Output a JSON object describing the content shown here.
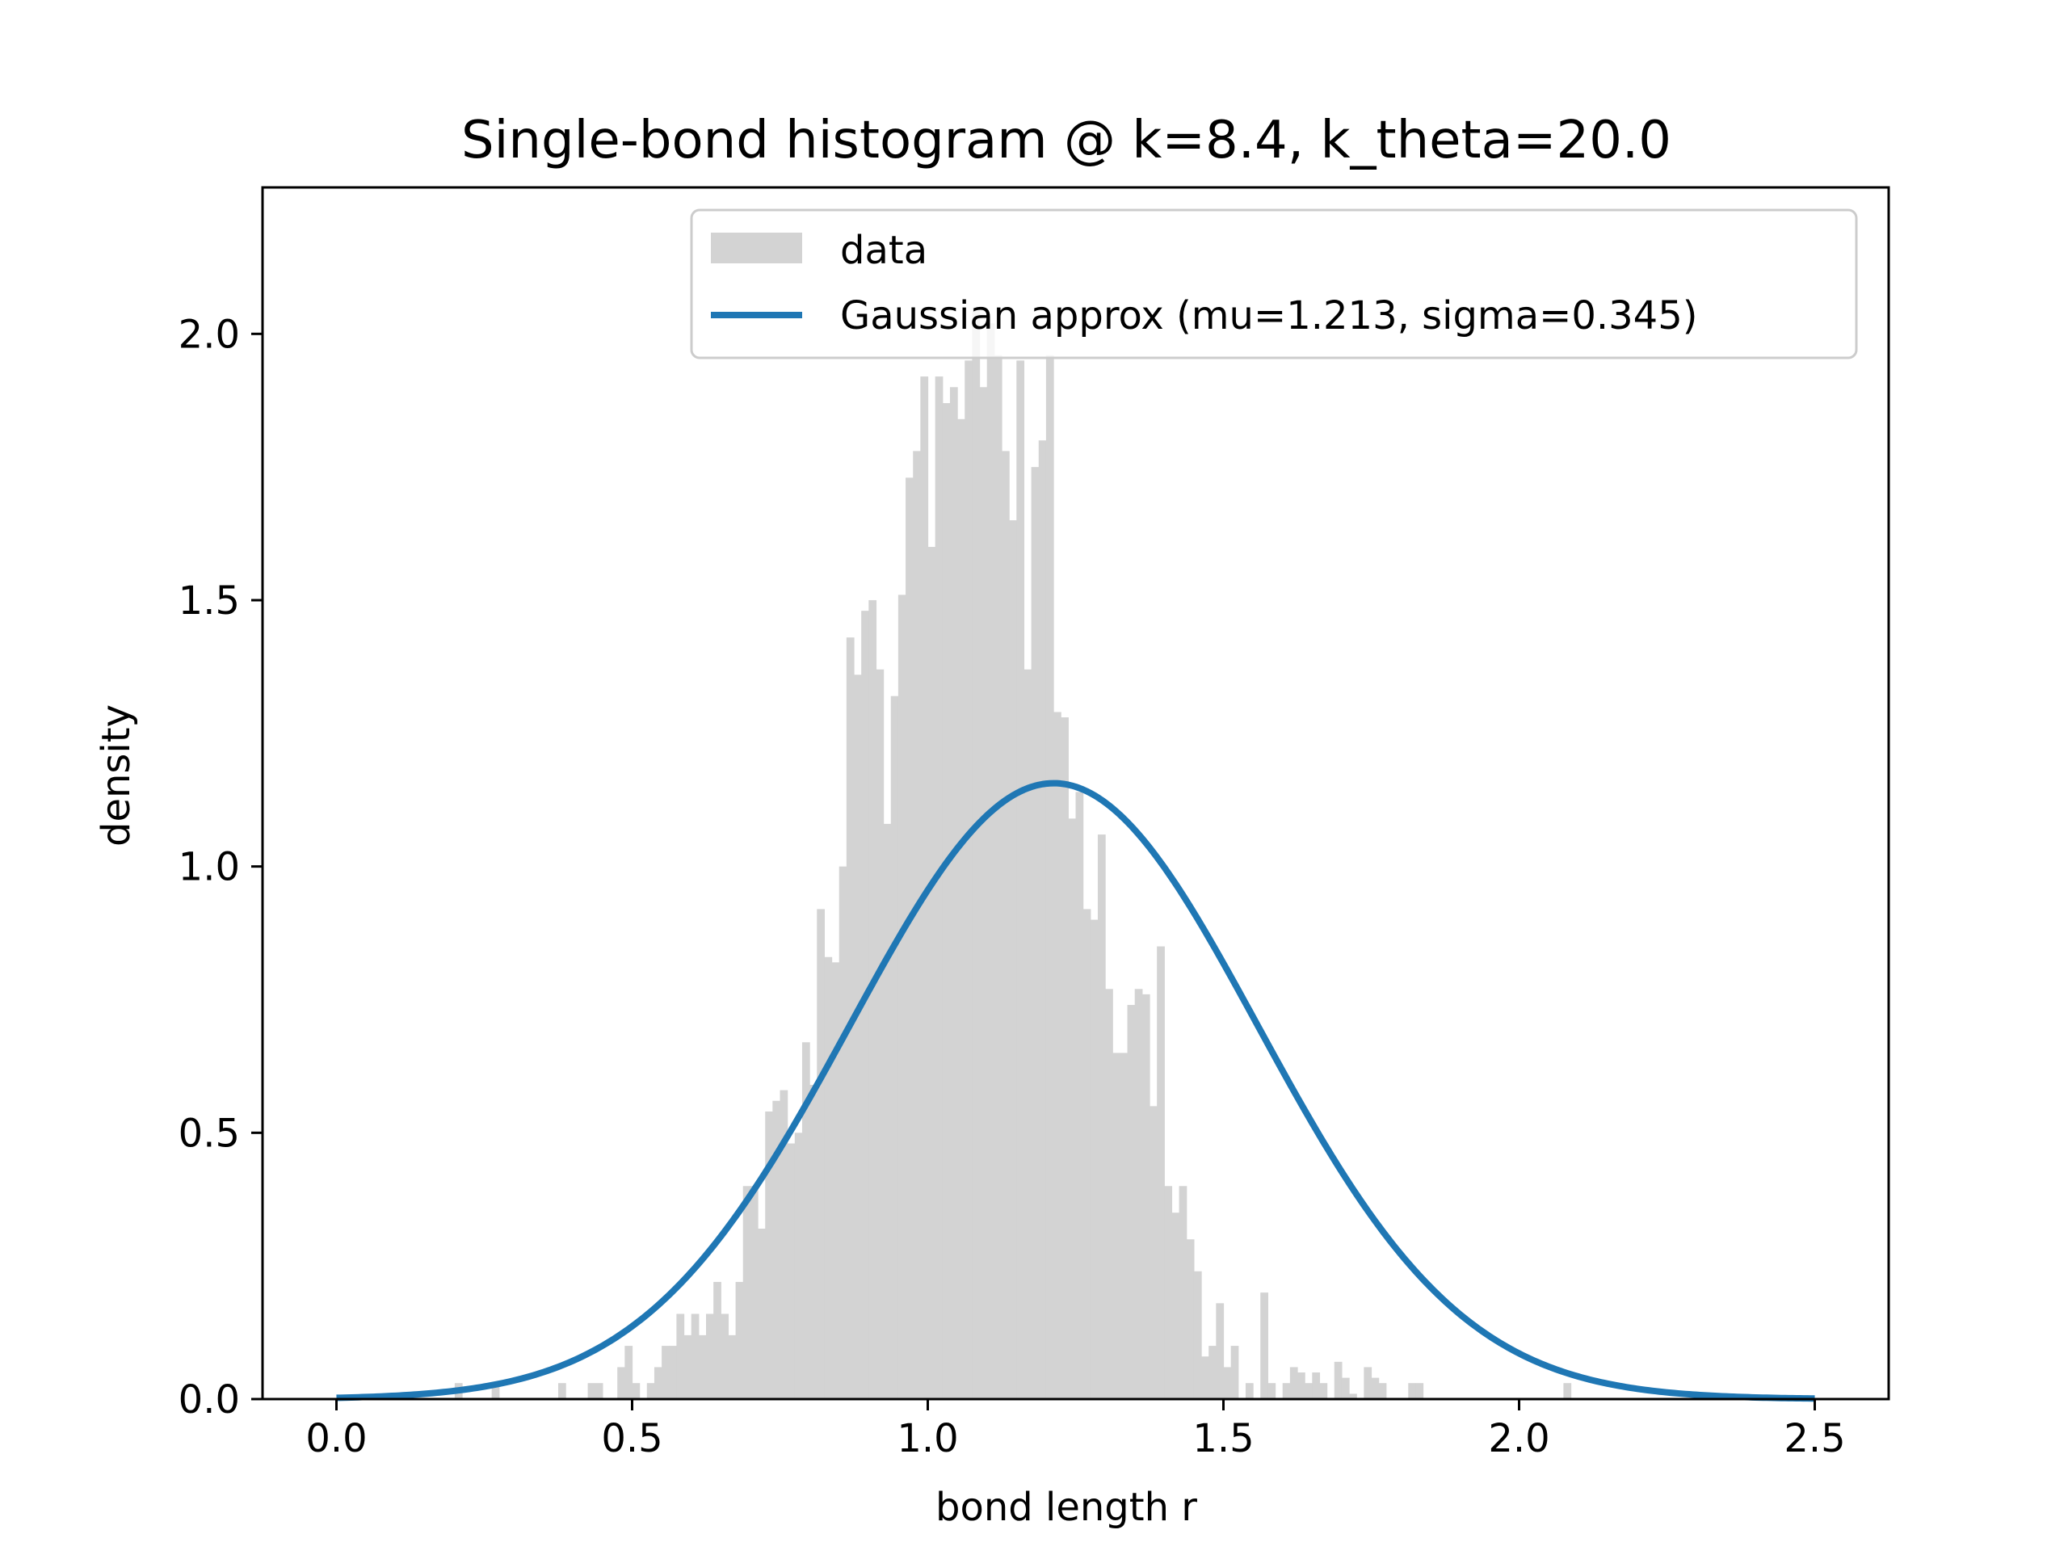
{
  "chart_data": {
    "type": "histogram",
    "title": "Single-bond histogram @ k=8.4, k_theta=20.0",
    "xlabel": "bond length r",
    "ylabel": "density",
    "xlim": [
      -0.125,
      2.625
    ],
    "ylim": [
      0.0,
      2.275
    ],
    "xticks": [
      0.0,
      0.5,
      1.0,
      1.5,
      2.0,
      2.5
    ],
    "xtick_labels": [
      "0.0",
      "0.5",
      "1.0",
      "1.5",
      "2.0",
      "2.5"
    ],
    "yticks": [
      0.0,
      0.5,
      1.0,
      1.5,
      2.0
    ],
    "ytick_labels": [
      "0.0",
      "0.5",
      "1.0",
      "1.5",
      "2.0"
    ],
    "grid": false,
    "legend_position": "top-right",
    "histogram": {
      "name": "data",
      "color": "#d3d3d3",
      "bin_start": 0.2,
      "bin_width": 0.0125,
      "values": [
        0.03,
        0.0,
        0.0,
        0.0,
        0.0,
        0.03,
        0.0,
        0.0,
        0.0,
        0.0,
        0.0,
        0.0,
        0.0,
        0.0,
        0.03,
        0.0,
        0.0,
        0.0,
        0.03,
        0.03,
        0.0,
        0.0,
        0.06,
        0.1,
        0.03,
        0.0,
        0.03,
        0.06,
        0.1,
        0.1,
        0.16,
        0.12,
        0.16,
        0.12,
        0.16,
        0.22,
        0.16,
        0.12,
        0.22,
        0.4,
        0.4,
        0.32,
        0.54,
        0.56,
        0.58,
        0.48,
        0.5,
        0.67,
        0.59,
        0.92,
        0.83,
        0.82,
        1.0,
        1.43,
        1.36,
        1.48,
        1.5,
        1.37,
        1.08,
        1.32,
        1.51,
        1.73,
        1.78,
        1.92,
        1.6,
        1.92,
        1.87,
        1.9,
        1.84,
        1.95,
        2.05,
        1.9,
        2.02,
        1.96,
        1.78,
        1.65,
        1.95,
        1.37,
        1.75,
        1.8,
        1.96,
        1.29,
        1.28,
        1.09,
        1.14,
        0.92,
        0.9,
        1.06,
        0.77,
        0.65,
        0.65,
        0.74,
        0.77,
        0.76,
        0.55,
        0.85,
        0.4,
        0.35,
        0.4,
        0.3,
        0.24,
        0.08,
        0.1,
        0.18,
        0.06,
        0.1,
        0.0,
        0.03,
        0.0,
        0.2,
        0.03,
        0.0,
        0.03,
        0.06,
        0.05,
        0.03,
        0.05,
        0.03,
        0.0,
        0.07,
        0.04,
        0.01,
        0.0,
        0.06,
        0.04,
        0.03,
        0.0,
        0.0,
        0.0,
        0.03,
        0.03,
        0.0,
        0.0,
        0.0,
        0.0,
        0.0,
        0.0,
        0.0,
        0.0,
        0.0,
        0.0,
        0.0,
        0.0,
        0.0,
        0.0,
        0.0,
        0.0,
        0.0,
        0.0,
        0.0,
        0.03
      ]
    },
    "series": [
      {
        "name": "Gaussian approx (mu=1.213, sigma=0.345)",
        "type": "line",
        "color": "#1f77b4",
        "mu": 1.213,
        "sigma": 0.345,
        "x_range": [
          0.0,
          2.5
        ]
      }
    ]
  }
}
